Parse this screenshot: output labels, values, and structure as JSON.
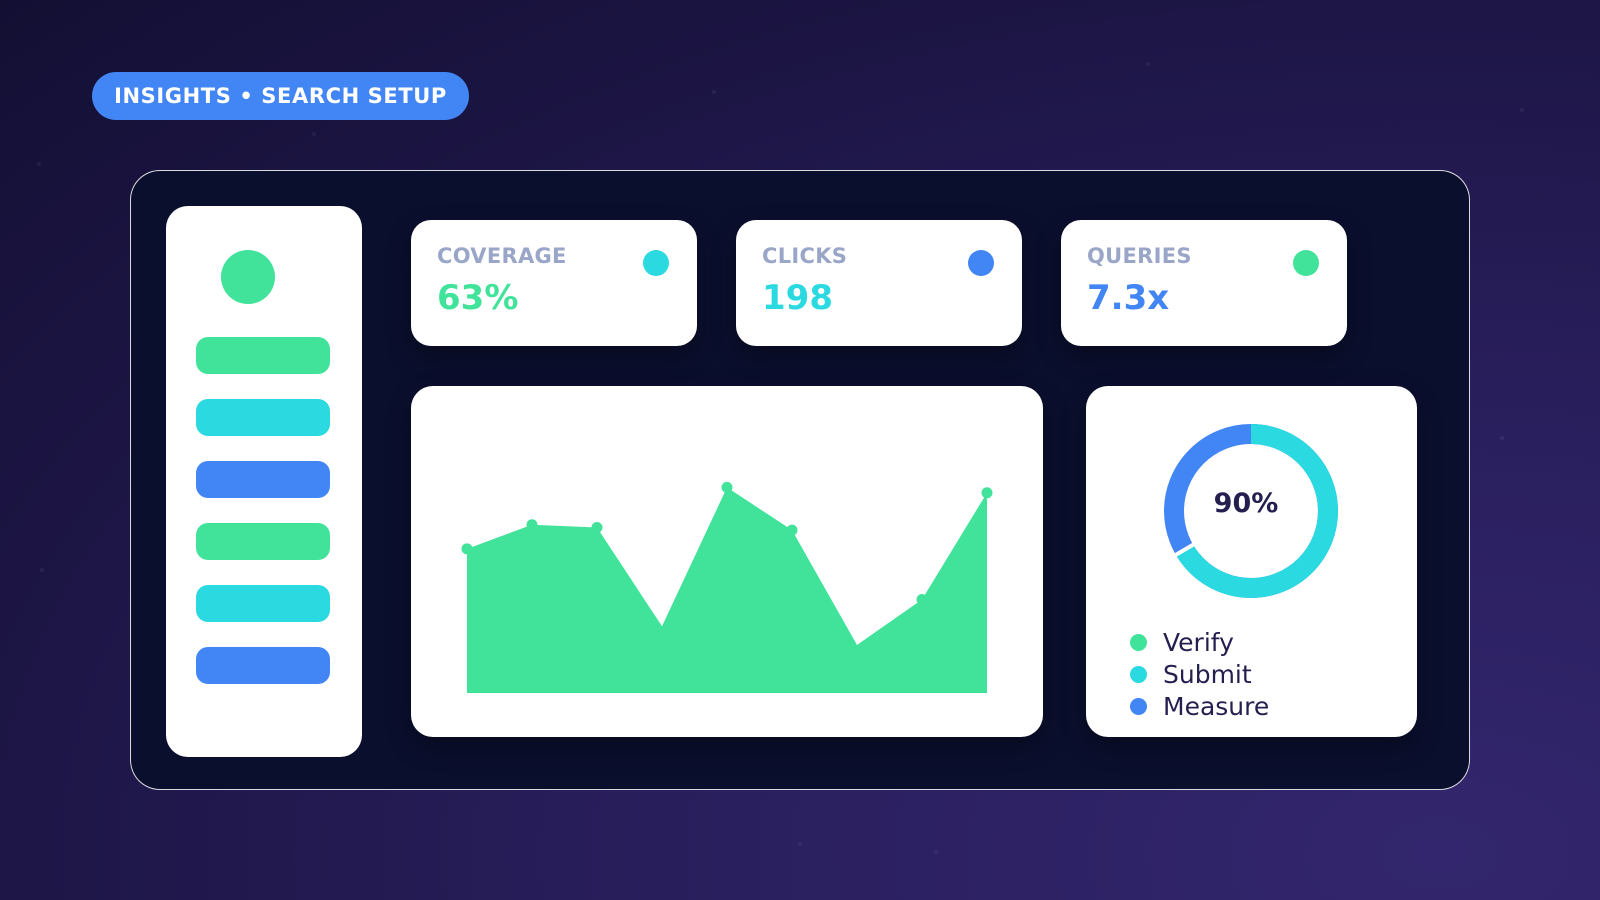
{
  "header": {
    "breadcrumb": "INSIGHTS • SEARCH SETUP"
  },
  "colors": {
    "green": "#41e39a",
    "cyan": "#2bd9e0",
    "blue": "#4285f4",
    "navy_text": "#241f4f",
    "label_gray": "#9aa6c8",
    "panel": "#0b0f2e"
  },
  "sidebar": {
    "avatar_icon": "avatar-circle",
    "items": [
      {
        "color": "#41e39a"
      },
      {
        "color": "#2bd9e0"
      },
      {
        "color": "#4285f4"
      },
      {
        "color": "#41e39a"
      },
      {
        "color": "#2bd9e0"
      },
      {
        "color": "#4285f4"
      }
    ]
  },
  "stats": [
    {
      "label": "COVERAGE",
      "value": "63%",
      "value_color": "#41e39a",
      "dot_color": "#2bd9e0"
    },
    {
      "label": "CLICKS",
      "value": "198",
      "value_color": "#2bd9e0",
      "dot_color": "#4285f4"
    },
    {
      "label": "QUERIES",
      "value": "7.3x",
      "value_color": "#4285f4",
      "dot_color": "#41e39a"
    }
  ],
  "chart_data": {
    "type": "area",
    "x": [
      1,
      2,
      3,
      4,
      5,
      6,
      7,
      8,
      9
    ],
    "values": [
      54,
      63,
      62,
      25,
      77,
      61,
      18,
      35,
      75
    ],
    "ylim": [
      0,
      100
    ],
    "color": "#41e39a",
    "markers": [
      0,
      1,
      2,
      4,
      5,
      7,
      8
    ]
  },
  "donut": {
    "center_label": "90%",
    "value_percent": 90,
    "segments": [
      {
        "label": "Verify",
        "color": "#41e39a"
      },
      {
        "label": "Submit",
        "color": "#2bd9e0"
      },
      {
        "label": "Measure",
        "color": "#4285f4"
      }
    ]
  }
}
